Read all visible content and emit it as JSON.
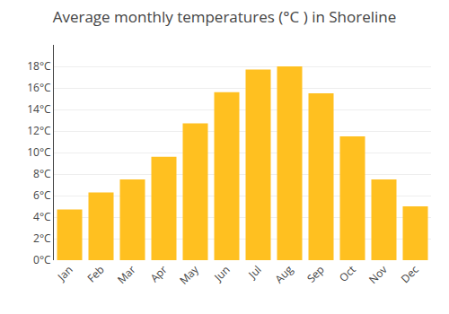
{
  "chart_data": {
    "type": "bar",
    "title": "Average monthly temperatures (°C ) in Shoreline",
    "categories": [
      "Jan",
      "Feb",
      "Mar",
      "Apr",
      "May",
      "Jun",
      "Jul",
      "Aug",
      "Sep",
      "Oct",
      "Nov",
      "Dec"
    ],
    "values": [
      4.7,
      6.3,
      7.5,
      9.6,
      12.7,
      15.6,
      17.7,
      18.0,
      15.5,
      11.5,
      7.5,
      5.0
    ],
    "color": "#FFC020",
    "ylim": [
      0,
      20
    ],
    "yticks": [
      {
        "value": 0,
        "label": "0°C"
      },
      {
        "value": 2,
        "label": "2°C"
      },
      {
        "value": 4,
        "label": "4°C"
      },
      {
        "value": 6,
        "label": "6°C"
      },
      {
        "value": 8,
        "label": "8°C"
      },
      {
        "value": 10,
        "label": "10°C"
      },
      {
        "value": 12,
        "label": "12°C"
      },
      {
        "value": 14,
        "label": "14°C"
      },
      {
        "value": 16,
        "label": "16°C"
      },
      {
        "value": 18,
        "label": "18°C"
      }
    ],
    "grid": true
  }
}
